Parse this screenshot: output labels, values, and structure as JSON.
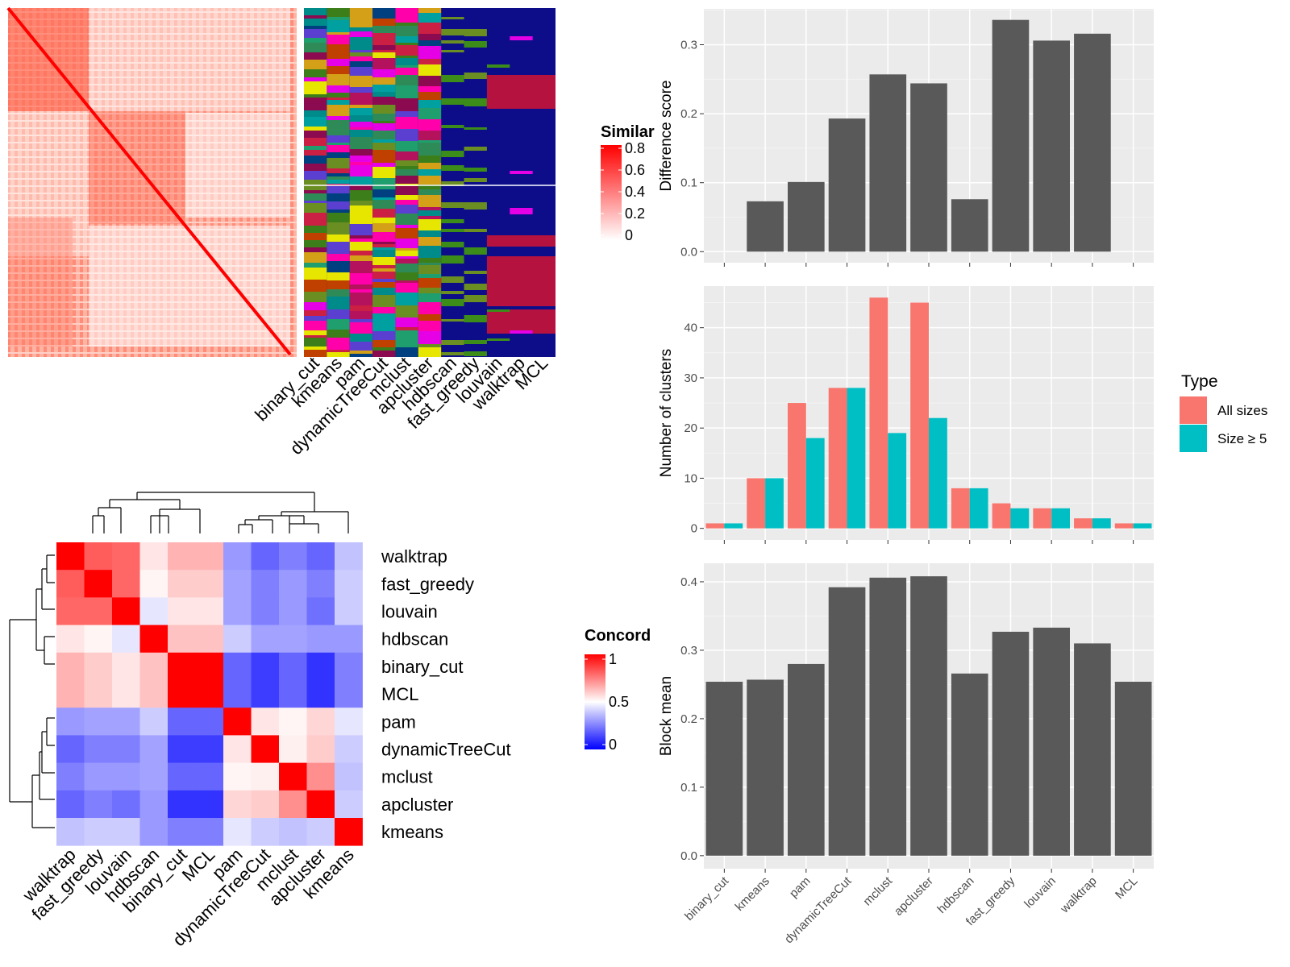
{
  "chart_data": [
    {
      "type": "heatmap",
      "name": "similarity-heatmap",
      "legend_title": "Similar",
      "legend_ticks": [
        "0.8",
        "0.6",
        "0.4",
        "0.2",
        "0"
      ],
      "colors": [
        "#ffffff",
        "#ff0000"
      ]
    },
    {
      "type": "heatmap",
      "name": "cluster-assignment-heatmap",
      "methods": [
        "binary_cut",
        "kmeans",
        "pam",
        "dynamicTreeCut",
        "mclust",
        "apcluster",
        "hdbscan",
        "fast_greedy",
        "louvain",
        "walktrap",
        "MCL"
      ],
      "background": "#0d0d8a"
    },
    {
      "type": "heatmap",
      "name": "concordance-heatmap",
      "legend_title": "Concord",
      "legend_ticks": [
        "1",
        "0.5",
        "0"
      ],
      "colors": [
        "#0000ff",
        "#ffffff",
        "#ff0000"
      ],
      "rows": [
        "walktrap",
        "fast_greedy",
        "louvain",
        "hdbscan",
        "binary_cut",
        "MCL",
        "pam",
        "dynamicTreeCut",
        "mclust",
        "apcluster",
        "kmeans"
      ],
      "cols": [
        "walktrap",
        "fast_greedy",
        "louvain",
        "hdbscan",
        "binary_cut",
        "MCL",
        "pam",
        "dynamicTreeCut",
        "mclust",
        "apcluster",
        "kmeans"
      ],
      "values": [
        [
          1.0,
          0.82,
          0.8,
          0.55,
          0.65,
          0.65,
          0.3,
          0.2,
          0.25,
          0.2,
          0.38
        ],
        [
          0.82,
          1.0,
          0.8,
          0.52,
          0.6,
          0.6,
          0.32,
          0.25,
          0.3,
          0.25,
          0.4
        ],
        [
          0.8,
          0.8,
          1.0,
          0.45,
          0.55,
          0.55,
          0.32,
          0.25,
          0.3,
          0.22,
          0.4
        ],
        [
          0.55,
          0.52,
          0.45,
          1.0,
          0.62,
          0.62,
          0.4,
          0.32,
          0.32,
          0.3,
          0.3
        ],
        [
          0.65,
          0.6,
          0.55,
          0.62,
          1.0,
          1.0,
          0.2,
          0.12,
          0.2,
          0.1,
          0.25
        ],
        [
          0.65,
          0.6,
          0.55,
          0.62,
          1.0,
          1.0,
          0.2,
          0.12,
          0.2,
          0.1,
          0.25
        ],
        [
          0.3,
          0.32,
          0.32,
          0.4,
          0.2,
          0.2,
          1.0,
          0.55,
          0.52,
          0.58,
          0.45
        ],
        [
          0.2,
          0.25,
          0.25,
          0.32,
          0.12,
          0.12,
          0.55,
          1.0,
          0.53,
          0.6,
          0.4
        ],
        [
          0.25,
          0.3,
          0.3,
          0.32,
          0.2,
          0.2,
          0.52,
          0.53,
          1.0,
          0.72,
          0.38
        ],
        [
          0.2,
          0.25,
          0.22,
          0.3,
          0.1,
          0.1,
          0.58,
          0.6,
          0.72,
          1.0,
          0.4
        ],
        [
          0.38,
          0.4,
          0.4,
          0.3,
          0.25,
          0.25,
          0.45,
          0.4,
          0.38,
          0.4,
          1.0
        ]
      ]
    },
    {
      "type": "bar",
      "name": "difference-score",
      "categories": [
        "binary_cut",
        "kmeans",
        "pam",
        "dynamicTreeCut",
        "mclust",
        "apcluster",
        "hdbscan",
        "fast_greedy",
        "louvain",
        "walktrap",
        "MCL"
      ],
      "values": [
        0,
        0.073,
        0.101,
        0.193,
        0.257,
        0.244,
        0.076,
        0.336,
        0.306,
        0.316,
        0
      ],
      "ylabel": "Difference score",
      "ylim": [
        -0.016,
        0.352
      ],
      "yticks": [
        0.0,
        0.1,
        0.2,
        0.3
      ],
      "ytick_labels": [
        "0.0",
        "0.1",
        "0.2",
        "0.3"
      ]
    },
    {
      "type": "bar",
      "name": "number-of-clusters",
      "categories": [
        "binary_cut",
        "kmeans",
        "pam",
        "dynamicTreeCut",
        "mclust",
        "apcluster",
        "hdbscan",
        "fast_greedy",
        "louvain",
        "walktrap",
        "MCL"
      ],
      "series": [
        {
          "name": "All sizes",
          "color": "#f8766d",
          "values": [
            1,
            10,
            25,
            28,
            46,
            45,
            8,
            5,
            4,
            2,
            1
          ]
        },
        {
          "name": "Size ≥ 5",
          "color": "#00bfc4",
          "values": [
            1,
            10,
            18,
            28,
            19,
            22,
            8,
            4,
            4,
            2,
            1
          ]
        }
      ],
      "ylabel": "Number of clusters",
      "ylim": [
        -2.3,
        48.3
      ],
      "yticks": [
        0,
        10,
        20,
        30,
        40
      ],
      "ytick_labels": [
        "0",
        "10",
        "20",
        "30",
        "40"
      ],
      "legend_title": "Type",
      "legend_placement": "right"
    },
    {
      "type": "bar",
      "name": "block-mean",
      "categories": [
        "binary_cut",
        "kmeans",
        "pam",
        "dynamicTreeCut",
        "mclust",
        "apcluster",
        "hdbscan",
        "fast_greedy",
        "louvain",
        "walktrap",
        "MCL"
      ],
      "values": [
        0.254,
        0.257,
        0.28,
        0.392,
        0.406,
        0.408,
        0.266,
        0.327,
        0.333,
        0.31,
        0.254
      ],
      "ylabel": "Block mean",
      "ylim": [
        -0.019,
        0.427
      ],
      "yticks": [
        0.0,
        0.1,
        0.2,
        0.3,
        0.4
      ],
      "ytick_labels": [
        "0.0",
        "0.1",
        "0.2",
        "0.3",
        "0.4"
      ]
    }
  ]
}
